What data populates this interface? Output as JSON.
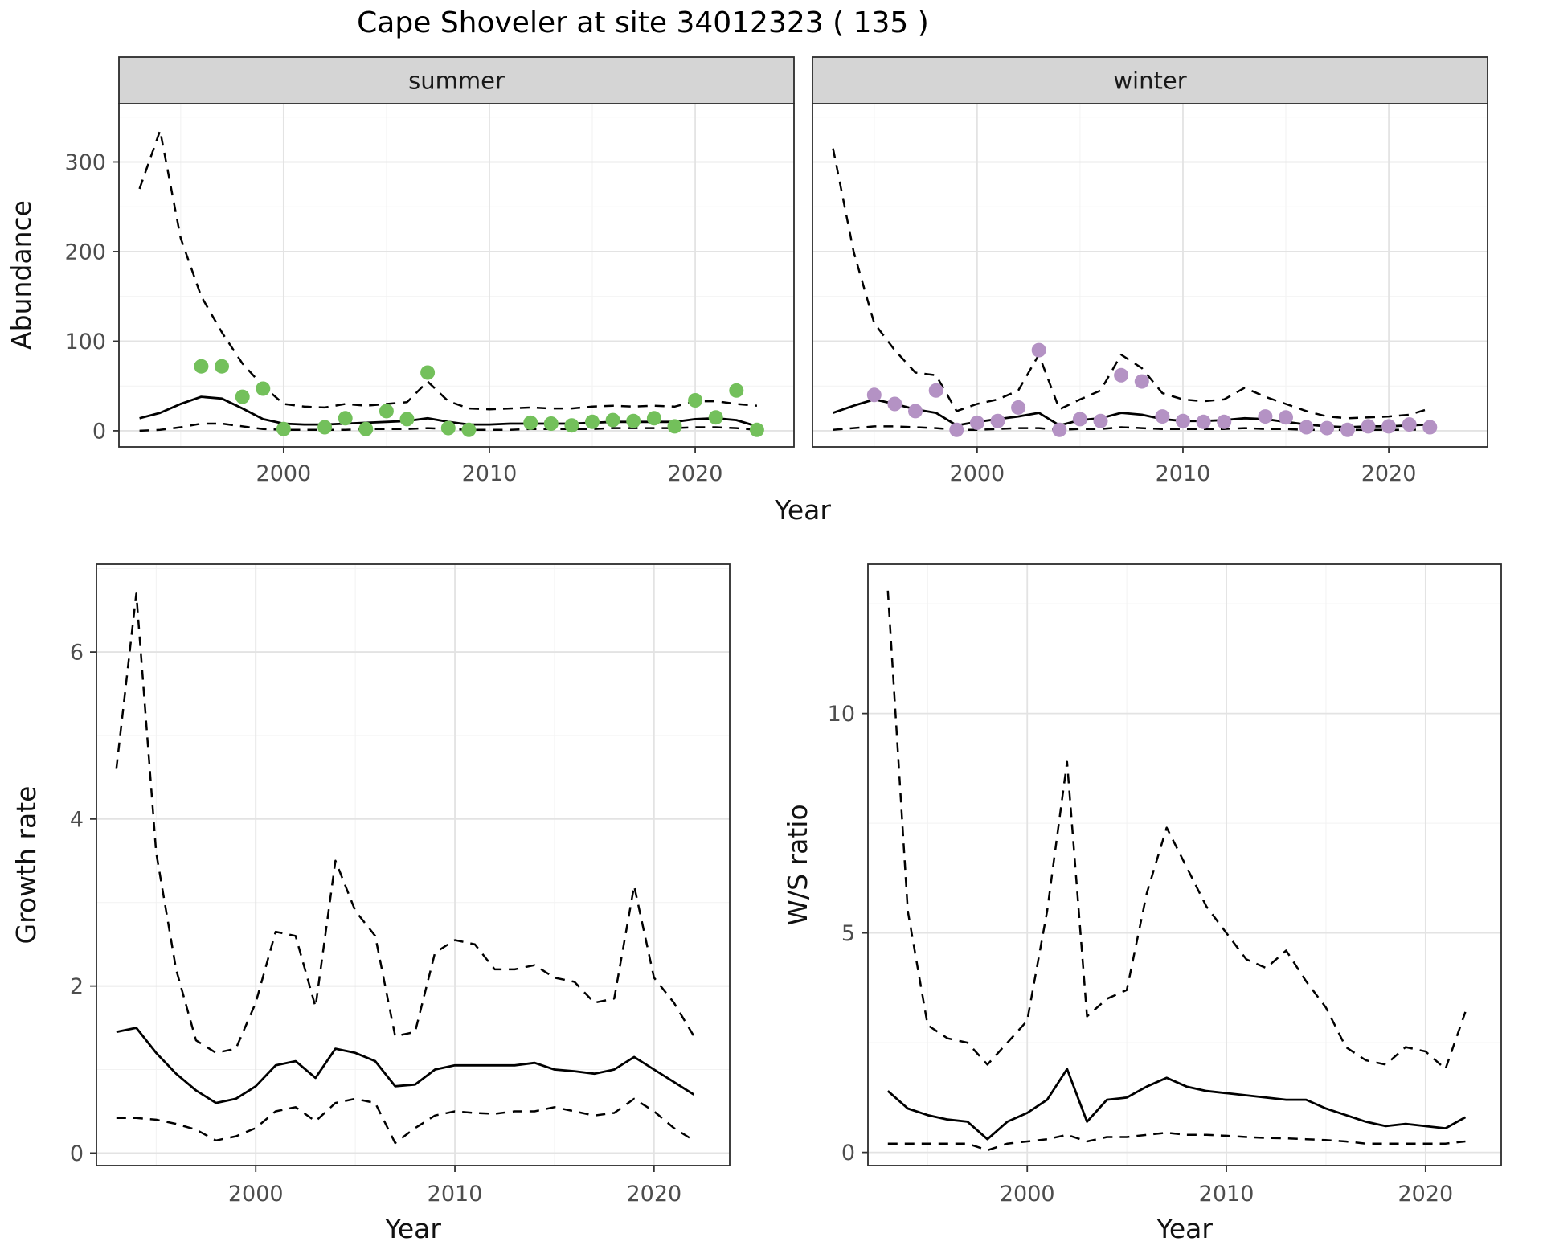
{
  "title": "Cape Shoveler at site 34012323 ( 135 )",
  "colors": {
    "summer_points": "#73c05b",
    "winter_points": "#b492c4",
    "line": "#000000",
    "grid_major": "#e3e3e3",
    "grid_minor": "#f2f2f2",
    "panel_border": "#2b2b2b",
    "strip_fill": "#d5d5d5",
    "strip_text": "#1a1a1a",
    "tick_text": "#4d4d4d",
    "axis_title_text": "#111111"
  },
  "chart_data": [
    {
      "id": "abundance-summer",
      "type": "line",
      "facet_label": "summer",
      "xlabel": "Year",
      "ylabel": "Abundance",
      "xlim": [
        1992,
        2024.8
      ],
      "ylim": [
        -18,
        365
      ],
      "xticks": [
        2000,
        2010,
        2020
      ],
      "yticks": [
        0,
        100,
        200,
        300
      ],
      "grid": true,
      "legend": "none",
      "x": [
        1993,
        1994,
        1995,
        1996,
        1997,
        1998,
        1999,
        2000,
        2001,
        2002,
        2003,
        2004,
        2005,
        2006,
        2007,
        2008,
        2009,
        2010,
        2011,
        2012,
        2013,
        2014,
        2015,
        2016,
        2017,
        2018,
        2019,
        2020,
        2021,
        2022,
        2023
      ],
      "series": [
        {
          "name": "upper-95ci",
          "style": "dashed",
          "values": [
            270,
            335,
            215,
            150,
            110,
            75,
            50,
            30,
            27,
            26,
            30,
            28,
            30,
            32,
            55,
            33,
            25,
            24,
            25,
            26,
            25,
            25,
            27,
            28,
            27,
            28,
            27,
            33,
            33,
            30,
            28
          ]
        },
        {
          "name": "fitted-median",
          "style": "solid",
          "values": [
            14,
            20,
            30,
            38,
            36,
            25,
            13,
            8,
            7,
            7,
            8,
            9,
            10,
            11,
            14,
            10,
            7,
            7,
            8,
            8,
            8,
            8,
            9,
            10,
            10,
            10,
            10,
            13,
            14,
            12,
            5
          ]
        },
        {
          "name": "lower-95ci",
          "style": "dashed",
          "values": [
            0,
            1,
            4,
            8,
            8,
            5,
            2,
            1,
            1,
            1,
            1,
            2,
            2,
            2,
            3,
            2,
            1,
            1,
            1,
            2,
            2,
            2,
            2,
            3,
            3,
            3,
            3,
            4,
            4,
            3,
            1
          ]
        }
      ],
      "points": {
        "name": "observed-count-summer",
        "color_key": "summer_points",
        "data": [
          [
            1996,
            72
          ],
          [
            1997,
            72
          ],
          [
            1998,
            38
          ],
          [
            1999,
            47
          ],
          [
            2000,
            2
          ],
          [
            2002,
            4
          ],
          [
            2003,
            14
          ],
          [
            2004,
            2
          ],
          [
            2005,
            22
          ],
          [
            2006,
            13
          ],
          [
            2007,
            65
          ],
          [
            2008,
            3
          ],
          [
            2009,
            1
          ],
          [
            2012,
            9
          ],
          [
            2013,
            8
          ],
          [
            2014,
            6
          ],
          [
            2015,
            10
          ],
          [
            2016,
            12
          ],
          [
            2017,
            11
          ],
          [
            2018,
            14
          ],
          [
            2019,
            5
          ],
          [
            2020,
            34
          ],
          [
            2021,
            15
          ],
          [
            2022,
            45
          ],
          [
            2023,
            1
          ]
        ]
      }
    },
    {
      "id": "abundance-winter",
      "type": "line",
      "facet_label": "winter",
      "xlabel": "Year",
      "ylabel": "Abundance",
      "xlim": [
        1992,
        2024.8
      ],
      "ylim": [
        -18,
        365
      ],
      "xticks": [
        2000,
        2010,
        2020
      ],
      "yticks": [
        0,
        100,
        200,
        300
      ],
      "grid": true,
      "legend": "none",
      "x": [
        1993,
        1994,
        1995,
        1996,
        1997,
        1998,
        1999,
        2000,
        2001,
        2002,
        2003,
        2004,
        2005,
        2006,
        2007,
        2008,
        2009,
        2010,
        2011,
        2012,
        2013,
        2014,
        2015,
        2016,
        2017,
        2018,
        2019,
        2020,
        2021,
        2022
      ],
      "series": [
        {
          "name": "upper-95ci",
          "style": "dashed",
          "values": [
            315,
            200,
            120,
            90,
            65,
            62,
            22,
            30,
            35,
            45,
            85,
            24,
            35,
            45,
            85,
            70,
            42,
            35,
            33,
            35,
            48,
            38,
            30,
            22,
            16,
            14,
            15,
            16,
            18,
            25
          ]
        },
        {
          "name": "fitted-median",
          "style": "solid",
          "values": [
            20,
            28,
            35,
            30,
            24,
            20,
            6,
            10,
            13,
            16,
            20,
            6,
            12,
            14,
            20,
            18,
            13,
            11,
            11,
            12,
            14,
            13,
            10,
            7,
            5,
            4,
            5,
            5,
            6,
            7
          ]
        },
        {
          "name": "lower-95ci",
          "style": "dashed",
          "values": [
            1,
            3,
            5,
            5,
            4,
            3,
            1,
            1,
            2,
            3,
            3,
            1,
            2,
            2,
            4,
            3,
            2,
            2,
            2,
            2,
            3,
            2,
            2,
            1,
            1,
            1,
            1,
            1,
            1,
            2
          ]
        }
      ],
      "points": {
        "name": "observed-count-winter",
        "color_key": "winter_points",
        "data": [
          [
            1995,
            40
          ],
          [
            1996,
            30
          ],
          [
            1997,
            22
          ],
          [
            1998,
            45
          ],
          [
            1999,
            1
          ],
          [
            2000,
            9
          ],
          [
            2001,
            11
          ],
          [
            2002,
            26
          ],
          [
            2003,
            90
          ],
          [
            2004,
            1
          ],
          [
            2005,
            13
          ],
          [
            2006,
            11
          ],
          [
            2007,
            62
          ],
          [
            2008,
            55
          ],
          [
            2009,
            16
          ],
          [
            2010,
            11
          ],
          [
            2011,
            10
          ],
          [
            2012,
            10
          ],
          [
            2014,
            16
          ],
          [
            2015,
            15
          ],
          [
            2016,
            4
          ],
          [
            2017,
            3
          ],
          [
            2018,
            1
          ],
          [
            2019,
            5
          ],
          [
            2020,
            5
          ],
          [
            2021,
            7
          ],
          [
            2022,
            4
          ]
        ]
      }
    },
    {
      "id": "growth-rate",
      "type": "line",
      "facet_label": null,
      "xlabel": "Year",
      "ylabel": "Growth rate",
      "xlim": [
        1992,
        2023.8
      ],
      "ylim": [
        -0.15,
        7.05
      ],
      "xticks": [
        2000,
        2010,
        2020
      ],
      "yticks": [
        0,
        2,
        4,
        6
      ],
      "grid": true,
      "legend": "none",
      "x": [
        1993,
        1994,
        1995,
        1996,
        1997,
        1998,
        1999,
        2000,
        2001,
        2002,
        2003,
        2004,
        2005,
        2006,
        2007,
        2008,
        2009,
        2010,
        2011,
        2012,
        2013,
        2014,
        2015,
        2016,
        2017,
        2018,
        2019,
        2020,
        2021,
        2022
      ],
      "series": [
        {
          "name": "upper-95ci",
          "style": "dashed",
          "values": [
            4.6,
            6.7,
            3.6,
            2.2,
            1.35,
            1.2,
            1.25,
            1.8,
            2.65,
            2.6,
            1.75,
            3.5,
            2.9,
            2.6,
            1.4,
            1.45,
            2.4,
            2.55,
            2.5,
            2.2,
            2.2,
            2.25,
            2.1,
            2.05,
            1.8,
            1.85,
            3.2,
            2.1,
            1.8,
            1.4
          ]
        },
        {
          "name": "fitted-median",
          "style": "solid",
          "values": [
            1.45,
            1.5,
            1.2,
            0.95,
            0.75,
            0.6,
            0.65,
            0.8,
            1.05,
            1.1,
            0.9,
            1.25,
            1.2,
            1.1,
            0.8,
            0.82,
            1.0,
            1.05,
            1.05,
            1.05,
            1.05,
            1.08,
            1.0,
            0.98,
            0.95,
            1.0,
            1.15,
            1.0,
            0.85,
            0.7
          ]
        },
        {
          "name": "lower-95ci",
          "style": "dashed",
          "values": [
            0.42,
            0.42,
            0.4,
            0.35,
            0.28,
            0.15,
            0.2,
            0.3,
            0.5,
            0.55,
            0.38,
            0.6,
            0.65,
            0.6,
            0.12,
            0.3,
            0.45,
            0.5,
            0.48,
            0.47,
            0.5,
            0.5,
            0.55,
            0.5,
            0.45,
            0.48,
            0.65,
            0.5,
            0.3,
            0.15
          ]
        }
      ],
      "points": null
    },
    {
      "id": "ws-ratio",
      "type": "line",
      "facet_label": null,
      "xlabel": "Year",
      "ylabel": "W/S ratio",
      "xlim": [
        1992,
        2023.8
      ],
      "ylim": [
        -0.3,
        13.4
      ],
      "xticks": [
        2000,
        2010,
        2020
      ],
      "yticks": [
        0,
        5,
        10
      ],
      "grid": true,
      "legend": "none",
      "x": [
        1993,
        1994,
        1995,
        1996,
        1997,
        1998,
        1999,
        2000,
        2001,
        2002,
        2003,
        2004,
        2005,
        2006,
        2007,
        2008,
        2009,
        2010,
        2011,
        2012,
        2013,
        2014,
        2015,
        2016,
        2017,
        2018,
        2019,
        2020,
        2021,
        2022
      ],
      "series": [
        {
          "name": "upper-95ci",
          "style": "dashed",
          "values": [
            12.8,
            5.5,
            2.9,
            2.6,
            2.5,
            2.0,
            2.5,
            3.0,
            5.5,
            8.9,
            3.1,
            3.5,
            3.7,
            5.9,
            7.4,
            6.5,
            5.6,
            5.0,
            4.4,
            4.2,
            4.6,
            3.9,
            3.3,
            2.4,
            2.1,
            2.0,
            2.4,
            2.3,
            1.9,
            3.2
          ]
        },
        {
          "name": "fitted-median",
          "style": "solid",
          "values": [
            1.4,
            1.0,
            0.85,
            0.75,
            0.7,
            0.3,
            0.7,
            0.9,
            1.2,
            1.9,
            0.7,
            1.2,
            1.25,
            1.5,
            1.7,
            1.5,
            1.4,
            1.35,
            1.3,
            1.25,
            1.2,
            1.2,
            1.0,
            0.85,
            0.7,
            0.6,
            0.65,
            0.6,
            0.55,
            0.8
          ]
        },
        {
          "name": "lower-95ci",
          "style": "dashed",
          "values": [
            0.2,
            0.2,
            0.2,
            0.2,
            0.2,
            0.05,
            0.2,
            0.25,
            0.3,
            0.4,
            0.25,
            0.35,
            0.35,
            0.4,
            0.45,
            0.4,
            0.4,
            0.38,
            0.35,
            0.33,
            0.32,
            0.3,
            0.28,
            0.25,
            0.2,
            0.2,
            0.2,
            0.2,
            0.2,
            0.25
          ]
        }
      ],
      "points": null
    }
  ]
}
